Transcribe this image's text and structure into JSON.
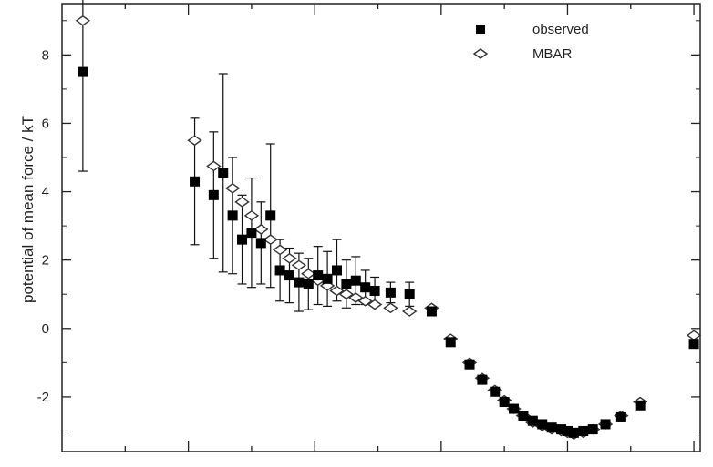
{
  "chart_data": {
    "type": "scatter",
    "title": "",
    "xlabel": "",
    "ylabel": "potential of mean force / kT",
    "xlim": [
      0,
      10.1
    ],
    "ylim": [
      -3.6,
      9.5
    ],
    "yticks": [
      -2,
      0,
      2,
      4,
      6,
      8
    ],
    "ytick_labels": [
      "-2",
      "0",
      "2",
      "4",
      "6",
      "8"
    ],
    "xticks": [
      1,
      2,
      3,
      4,
      5,
      6,
      7,
      8,
      9,
      10
    ],
    "grid": false,
    "legend_position": "top-right",
    "series": [
      {
        "name": "observed",
        "marker": "filled-square",
        "color": "#000000",
        "x": [
          0.33,
          2.1,
          2.4,
          2.55,
          2.7,
          2.85,
          3.0,
          3.15,
          3.3,
          3.45,
          3.6,
          3.75,
          3.9,
          4.05,
          4.2,
          4.35,
          4.5,
          4.65,
          4.8,
          4.95,
          5.2,
          5.5,
          5.85,
          6.15,
          6.45,
          6.65,
          6.85,
          7.0,
          7.15,
          7.3,
          7.45,
          7.6,
          7.75,
          7.9,
          8.0,
          8.1,
          8.25,
          8.4,
          8.6,
          8.85,
          9.15,
          10.0
        ],
        "y": [
          7.5,
          4.3,
          3.9,
          4.55,
          3.3,
          2.6,
          2.8,
          2.5,
          3.3,
          1.7,
          1.55,
          1.35,
          1.3,
          1.55,
          1.45,
          1.7,
          1.3,
          1.4,
          1.2,
          1.1,
          1.05,
          1.0,
          0.5,
          -0.4,
          -1.05,
          -1.5,
          -1.85,
          -2.15,
          -2.35,
          -2.55,
          -2.7,
          -2.8,
          -2.9,
          -2.95,
          -3.0,
          -3.05,
          -3.0,
          -2.95,
          -2.8,
          -2.6,
          -2.25,
          -0.45
        ],
        "error": [
          2.9,
          1.85,
          1.85,
          2.9,
          1.7,
          1.3,
          1.6,
          1.2,
          2.1,
          0.9,
          0.8,
          0.85,
          0.75,
          0.85,
          0.8,
          0.9,
          0.7,
          0.7,
          0.5,
          0.4,
          0.3,
          0.35,
          0,
          0,
          0,
          0,
          0,
          0,
          0,
          0,
          0,
          0,
          0,
          0,
          0,
          0,
          0,
          0,
          0,
          0,
          0,
          0
        ]
      },
      {
        "name": "MBAR",
        "marker": "open-diamond",
        "color": "#000000",
        "x": [
          0.33,
          2.1,
          2.4,
          2.7,
          2.85,
          3.0,
          3.15,
          3.3,
          3.45,
          3.6,
          3.75,
          3.9,
          4.05,
          4.2,
          4.35,
          4.5,
          4.65,
          4.8,
          4.95,
          5.2,
          5.5,
          5.85,
          6.15,
          6.45,
          6.65,
          6.85,
          7.0,
          7.15,
          7.3,
          7.45,
          7.6,
          7.75,
          7.9,
          8.0,
          8.1,
          8.25,
          8.4,
          8.6,
          8.85,
          9.15,
          10.0
        ],
        "y": [
          9.0,
          5.5,
          4.75,
          4.1,
          3.7,
          3.3,
          2.9,
          2.6,
          2.3,
          2.05,
          1.85,
          1.6,
          1.4,
          1.25,
          1.1,
          1.0,
          0.9,
          0.8,
          0.7,
          0.6,
          0.5,
          0.6,
          -0.3,
          -1.0,
          -1.45,
          -1.8,
          -2.1,
          -2.35,
          -2.55,
          -2.75,
          -2.85,
          -2.95,
          -3.0,
          -3.05,
          -3.1,
          -3.05,
          -2.95,
          -2.8,
          -2.55,
          -2.15,
          -0.2
        ]
      }
    ]
  }
}
